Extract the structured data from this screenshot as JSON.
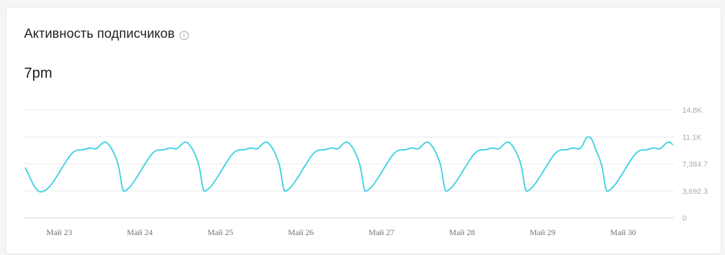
{
  "widget": {
    "title": "Активность подписчиков",
    "info_icon": "info-circle-icon",
    "peak_label": "7pm"
  },
  "colors": {
    "line": "#45d3e3",
    "grid": "#e9eaec",
    "baseline": "#d4d6da"
  },
  "chart_data": {
    "type": "line",
    "title": "",
    "xlabel": "",
    "ylabel": "",
    "ylim": [
      0,
      14800
    ],
    "y_ticks": [
      "0",
      "3,692.3",
      "7,384.7",
      "11.1K",
      "14.8K"
    ],
    "x_tick_labels": [
      "Май 23",
      "Май 24",
      "Май 25",
      "Май 26",
      "Май 27",
      "Май 28",
      "Май 29",
      "Май 30"
    ],
    "grid": true,
    "legend": "none",
    "series": [
      {
        "name": "",
        "x_unit": "hours since Май 23 00:00 (approx.)",
        "values": [
          [
            -5,
            6900
          ],
          [
            -4,
            6000
          ],
          [
            -3,
            4900
          ],
          [
            -2,
            4100
          ],
          [
            -1,
            3600
          ],
          [
            0,
            3550
          ],
          [
            1,
            3750
          ],
          [
            2,
            4150
          ],
          [
            3,
            4700
          ],
          [
            4,
            5400
          ],
          [
            5,
            6100
          ],
          [
            6,
            6900
          ],
          [
            7,
            7600
          ],
          [
            8,
            8350
          ],
          [
            9,
            8900
          ],
          [
            10,
            9250
          ],
          [
            11,
            9350
          ],
          [
            12,
            9300
          ],
          [
            13,
            9450
          ],
          [
            14,
            9600
          ],
          [
            15,
            9550
          ],
          [
            16,
            9400
          ],
          [
            17,
            9800
          ],
          [
            18,
            10300
          ],
          [
            19,
            10450
          ],
          [
            20,
            10000
          ],
          [
            21,
            9300
          ],
          [
            22,
            8300
          ],
          [
            23,
            6900
          ]
        ],
        "daily_peak": "~10.4K at 7pm",
        "daily_trough": "~3.5K around midnight",
        "note": "Same daily cycle repeats for Май 23 – Май 30; highest peak ≈11.1K on Май 29."
      }
    ]
  }
}
